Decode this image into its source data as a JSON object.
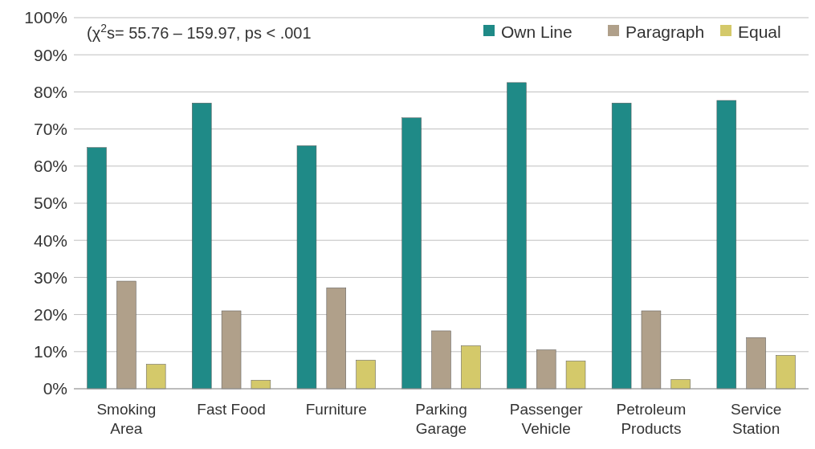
{
  "chart_data": {
    "type": "bar",
    "categories": [
      "Smoking\nArea",
      "Fast Food",
      "Furniture",
      "Parking\nGarage",
      "Passenger\nVehicle",
      "Petroleum\nProducts",
      "Service\nStation"
    ],
    "series": [
      {
        "name": "Own Line",
        "color": "#1f8a87",
        "values": [
          65,
          77,
          65.5,
          73,
          82.5,
          77,
          77.7
        ]
      },
      {
        "name": "Paragraph",
        "color": "#b0a08a",
        "values": [
          29,
          21,
          27.2,
          15.6,
          10.5,
          21,
          13.8
        ]
      },
      {
        "name": "Equal",
        "color": "#d4c96a",
        "values": [
          6.6,
          2.3,
          7.7,
          11.6,
          7.5,
          2.5,
          9
        ]
      }
    ],
    "ylim": [
      0,
      100
    ],
    "yticks": [
      {
        "value": 0,
        "label": "0%"
      },
      {
        "value": 10,
        "label": "10%"
      },
      {
        "value": 20,
        "label": "20%"
      },
      {
        "value": 30,
        "label": "30%"
      },
      {
        "value": 40,
        "label": "40%"
      },
      {
        "value": 50,
        "label": "50%"
      },
      {
        "value": 60,
        "label": "60%"
      },
      {
        "value": 70,
        "label": "70%"
      },
      {
        "value": 80,
        "label": "80%"
      },
      {
        "value": 90,
        "label": "90%"
      },
      {
        "value": 100,
        "label": "100%"
      }
    ],
    "grid": "y",
    "legend": "top right",
    "annotations": [
      "(χ$^{2}$s= 55.76 – 159.97, ps < .001"
    ]
  }
}
